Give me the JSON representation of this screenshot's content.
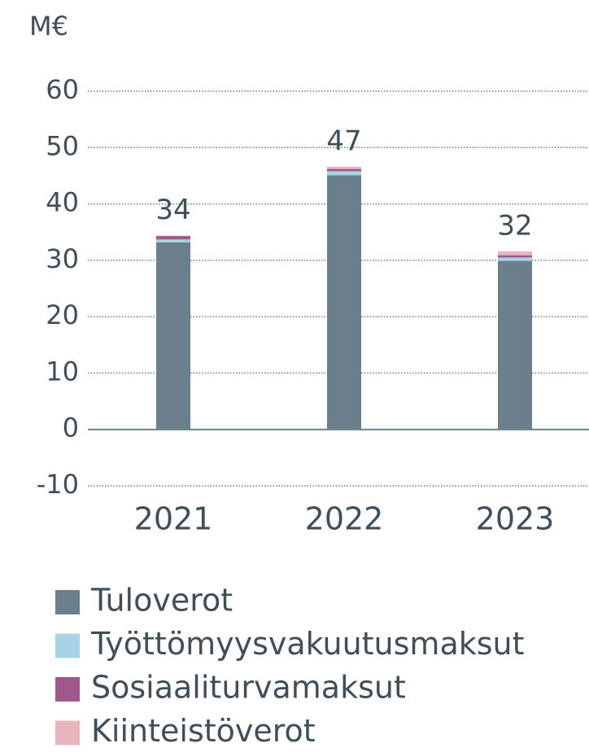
{
  "chart_data": {
    "type": "stacked_bar",
    "unit_label": "M€",
    "categories": [
      "2021",
      "2022",
      "2023"
    ],
    "series": [
      {
        "name": "Tuloverot",
        "color": "#6b7f8c",
        "values": [
          33.2,
          45.1,
          29.9
        ]
      },
      {
        "name": "Työttömyysvakuutusmaksut",
        "color": "#a8d3e6",
        "values": [
          0.5,
          0.7,
          0.6
        ]
      },
      {
        "name": "Sosiaaliturvamaksut",
        "color": "#a0578a",
        "values": [
          0.6,
          0.4,
          0.4
        ]
      },
      {
        "name": "Kiinteistöverot",
        "color": "#e8b4bd",
        "values": [
          0.1,
          0.4,
          0.7
        ]
      }
    ],
    "total_labels": [
      34,
      47,
      32
    ],
    "ylim": [
      -10,
      60
    ],
    "yticks": [
      -10,
      0,
      10,
      20,
      30,
      40,
      50,
      60
    ],
    "grid": true
  }
}
